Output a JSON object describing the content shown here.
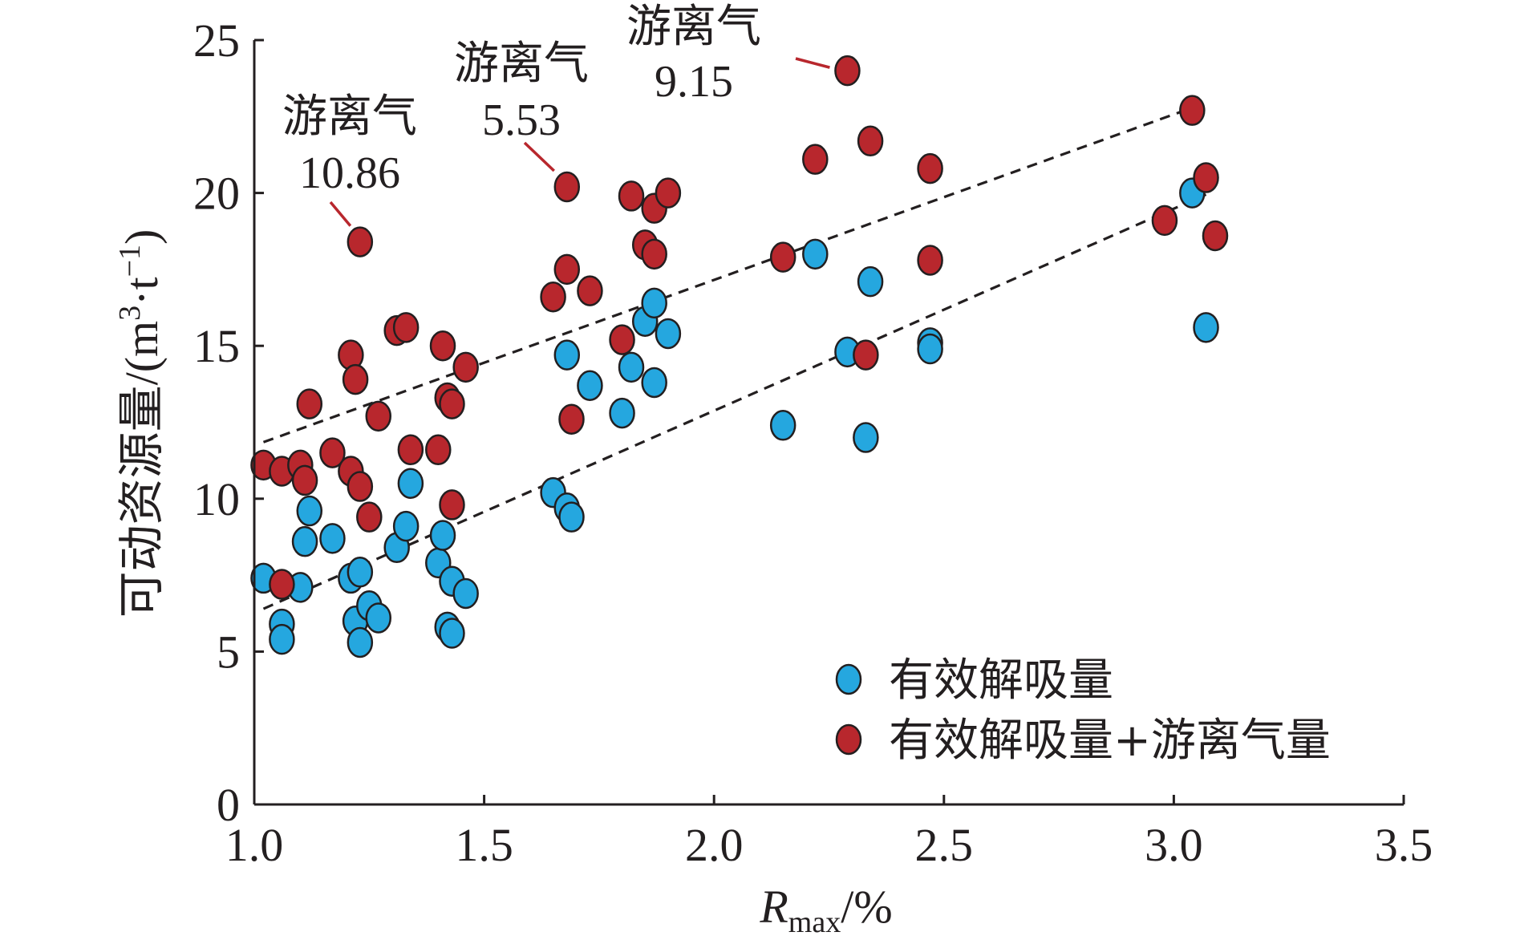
{
  "chart_data": {
    "type": "scatter",
    "title": "",
    "xlabel": {
      "main": "R",
      "sub": "max",
      "suffix": "/%"
    },
    "ylabel": {
      "main": "可动资源量/(m",
      "sup1": "3",
      "mid": "·t",
      "sup2": "−1",
      "end": ")"
    },
    "xlim": [
      1.0,
      3.5
    ],
    "ylim": [
      0,
      25
    ],
    "xticks": [
      1.0,
      1.5,
      2.0,
      2.5,
      3.0,
      3.5
    ],
    "xtick_labels": [
      "1.0",
      "1.5",
      "2.0",
      "2.5",
      "3.0",
      "3.5"
    ],
    "yticks": [
      0,
      5,
      10,
      15,
      20,
      25
    ],
    "ytick_labels": [
      "0",
      "5",
      "10",
      "15",
      "20",
      "25"
    ],
    "legend_position": "bottom-right",
    "series": [
      {
        "name": "有效解吸量",
        "color": "#25a7df",
        "points": [
          [
            1.02,
            7.4
          ],
          [
            1.06,
            5.9
          ],
          [
            1.06,
            5.4
          ],
          [
            1.1,
            7.1
          ],
          [
            1.11,
            8.6
          ],
          [
            1.12,
            9.6
          ],
          [
            1.17,
            8.7
          ],
          [
            1.21,
            7.4
          ],
          [
            1.22,
            6.0
          ],
          [
            1.23,
            7.6
          ],
          [
            1.23,
            5.3
          ],
          [
            1.25,
            6.5
          ],
          [
            1.27,
            6.1
          ],
          [
            1.31,
            8.4
          ],
          [
            1.33,
            9.1
          ],
          [
            1.34,
            10.5
          ],
          [
            1.4,
            7.9
          ],
          [
            1.41,
            8.8
          ],
          [
            1.42,
            5.8
          ],
          [
            1.43,
            7.3
          ],
          [
            1.43,
            5.6
          ],
          [
            1.46,
            6.9
          ],
          [
            1.65,
            10.2
          ],
          [
            1.68,
            9.7
          ],
          [
            1.69,
            9.4
          ],
          [
            1.68,
            14.7
          ],
          [
            1.73,
            13.7
          ],
          [
            1.8,
            12.8
          ],
          [
            1.82,
            14.3
          ],
          [
            1.85,
            15.8
          ],
          [
            1.87,
            16.4
          ],
          [
            1.87,
            13.8
          ],
          [
            1.9,
            15.4
          ],
          [
            2.15,
            12.4
          ],
          [
            2.22,
            18.0
          ],
          [
            2.29,
            14.8
          ],
          [
            2.33,
            12.0
          ],
          [
            2.34,
            17.1
          ],
          [
            2.47,
            15.1
          ],
          [
            2.47,
            14.9
          ],
          [
            3.04,
            20.0
          ],
          [
            3.07,
            15.6
          ]
        ]
      },
      {
        "name": "有效解吸量+游离气量",
        "color": "#b8272d",
        "points": [
          [
            1.02,
            11.1
          ],
          [
            1.06,
            10.9
          ],
          [
            1.06,
            7.2
          ],
          [
            1.1,
            11.1
          ],
          [
            1.11,
            10.6
          ],
          [
            1.12,
            13.1
          ],
          [
            1.17,
            11.5
          ],
          [
            1.21,
            14.7
          ],
          [
            1.22,
            13.9
          ],
          [
            1.21,
            10.9
          ],
          [
            1.23,
            10.4
          ],
          [
            1.25,
            9.4
          ],
          [
            1.27,
            12.7
          ],
          [
            1.31,
            15.5
          ],
          [
            1.33,
            15.6
          ],
          [
            1.34,
            11.6
          ],
          [
            1.4,
            11.6
          ],
          [
            1.41,
            15.0
          ],
          [
            1.42,
            13.3
          ],
          [
            1.43,
            13.1
          ],
          [
            1.43,
            9.8
          ],
          [
            1.46,
            14.3
          ],
          [
            1.23,
            18.4
          ],
          [
            1.65,
            16.6
          ],
          [
            1.68,
            17.5
          ],
          [
            1.68,
            20.2
          ],
          [
            1.73,
            16.8
          ],
          [
            1.69,
            12.6
          ],
          [
            1.8,
            15.2
          ],
          [
            1.82,
            19.9
          ],
          [
            1.85,
            18.3
          ],
          [
            1.87,
            19.5
          ],
          [
            1.87,
            18.0
          ],
          [
            1.9,
            20.0
          ],
          [
            2.15,
            17.9
          ],
          [
            2.22,
            21.1
          ],
          [
            2.29,
            24.0
          ],
          [
            2.33,
            14.7
          ],
          [
            2.34,
            21.7
          ],
          [
            2.47,
            20.8
          ],
          [
            2.47,
            17.8
          ],
          [
            2.98,
            19.1
          ],
          [
            3.04,
            22.7
          ],
          [
            3.07,
            20.5
          ],
          [
            3.09,
            18.6
          ]
        ]
      }
    ],
    "trendlines": [
      {
        "series": "有效解吸量+游离气量",
        "from": [
          1.02,
          11.85
        ],
        "to": [
          3.07,
          22.95
        ]
      },
      {
        "series": "有效解吸量",
        "from": [
          1.02,
          6.4
        ],
        "to": [
          3.07,
          19.95
        ]
      }
    ],
    "annotations": [
      {
        "label": "游离气",
        "value": "10.86",
        "point": [
          1.23,
          18.4
        ]
      },
      {
        "label": "游离气",
        "value": "5.53",
        "point": [
          1.68,
          20.2
        ]
      },
      {
        "label": "游离气",
        "value": "9.15",
        "point": [
          2.29,
          24.0
        ]
      }
    ]
  }
}
